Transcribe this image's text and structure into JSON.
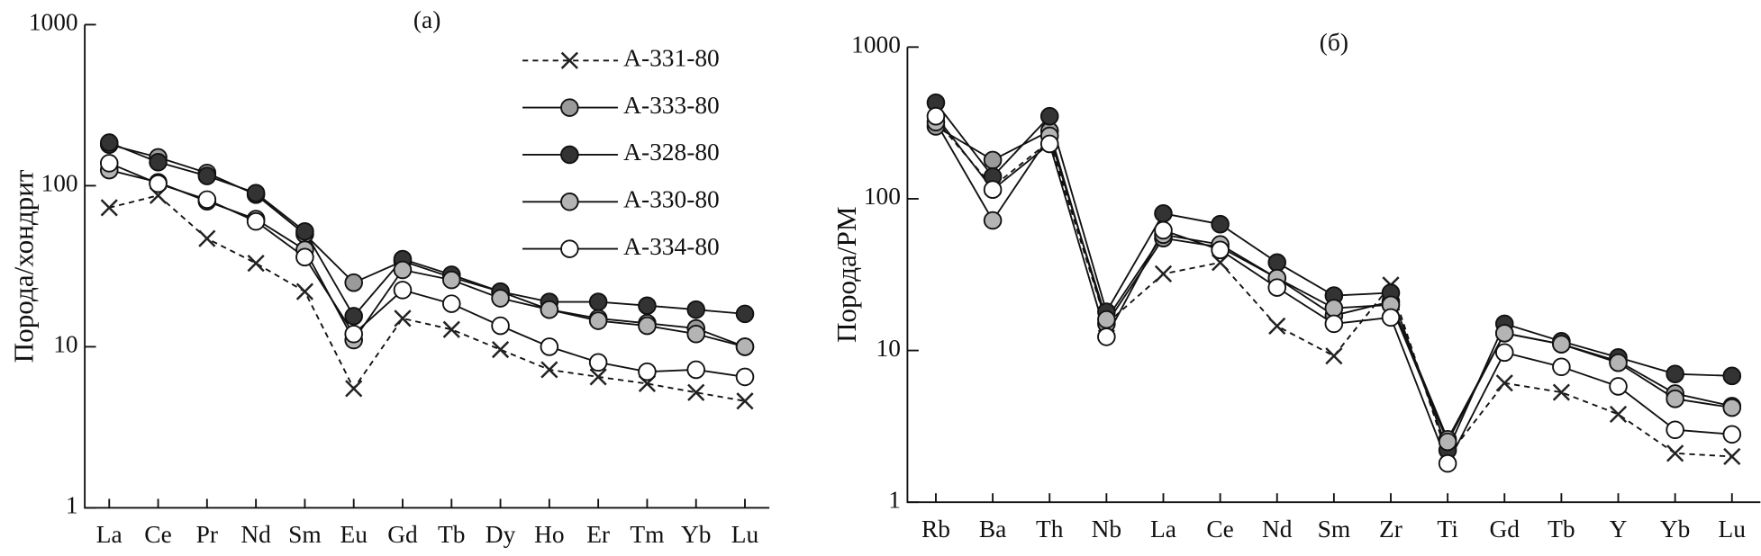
{
  "chart_data": [
    {
      "type": "line",
      "title": "(a)",
      "ylabel": "Порода/хондрит",
      "yscale": "log",
      "ylim": [
        1,
        1000
      ],
      "yticks": [
        1,
        10,
        100,
        1000
      ],
      "legend": "upper-right",
      "categories": [
        "La",
        "Ce",
        "Pr",
        "Nd",
        "Sm",
        "Eu",
        "Gd",
        "Tb",
        "Dy",
        "Ho",
        "Er",
        "Tm",
        "Yb",
        "Lu"
      ],
      "series": [
        {
          "name": "A-331-80",
          "marker": "x",
          "dashed": true,
          "color": "#222222",
          "values": [
            73,
            87,
            47,
            33,
            22,
            5.5,
            15,
            12.8,
            9.6,
            7.2,
            6.5,
            5.9,
            5.2,
            4.6
          ]
        },
        {
          "name": "A-333-80",
          "marker": "circle",
          "dashed": false,
          "color": "#9a9a9a",
          "values": [
            180,
            150,
            120,
            88,
            50,
            25,
            34,
            27,
            22,
            17,
            15,
            14,
            13,
            10
          ]
        },
        {
          "name": "A-328-80",
          "marker": "circle",
          "dashed": false,
          "color": "#333333",
          "values": [
            185,
            140,
            115,
            90,
            52,
            15.5,
            35,
            28,
            22,
            19,
            19,
            18,
            17,
            16
          ]
        },
        {
          "name": "A-330-80",
          "marker": "circle",
          "dashed": false,
          "color": "#b4b4b4",
          "values": [
            125,
            105,
            80,
            62,
            40,
            11,
            30,
            26,
            20,
            17,
            14.5,
            13.5,
            12,
            10
          ]
        },
        {
          "name": "A-334-80",
          "marker": "circle",
          "dashed": false,
          "color": "#ffffff",
          "values": [
            138,
            103,
            82,
            60,
            36,
            12,
            22.5,
            18.5,
            13.5,
            10,
            8,
            7,
            7.2,
            6.5
          ]
        }
      ]
    },
    {
      "type": "line",
      "title": "(б)",
      "ylabel": "Порода/PM",
      "yscale": "log",
      "ylim": [
        1,
        1000
      ],
      "yticks": [
        1,
        10,
        100,
        1000
      ],
      "categories": [
        "Rb",
        "Ba",
        "Th",
        "Nb",
        "La",
        "Ce",
        "Nd",
        "Sm",
        "Zr",
        "Ti",
        "Gd",
        "Tb",
        "Y",
        "Yb",
        "Lu"
      ],
      "series": [
        {
          "name": "A-331-80",
          "marker": "x",
          "dashed": true,
          "color": "#222222",
          "values": [
            330,
            120,
            240,
            15,
            32,
            38,
            14.5,
            9.2,
            27,
            2.0,
            6.1,
            5.3,
            3.8,
            2.1,
            2.0
          ]
        },
        {
          "name": "A-333-80",
          "marker": "circle",
          "dashed": false,
          "color": "#9a9a9a",
          "values": [
            300,
            180,
            280,
            15,
            55,
            48,
            30,
            17,
            21,
            2.6,
            13,
            11,
            8.5,
            5.2,
            4.3
          ]
        },
        {
          "name": "A-328-80",
          "marker": "circle",
          "dashed": false,
          "color": "#333333",
          "values": [
            430,
            140,
            350,
            18,
            80,
            68,
            38,
            23,
            24,
            2.2,
            15,
            11.5,
            9,
            7,
            6.8
          ]
        },
        {
          "name": "A-330-80",
          "marker": "circle",
          "dashed": false,
          "color": "#b4b4b4",
          "values": [
            320,
            72,
            260,
            16,
            58,
            50,
            30,
            19,
            20,
            2.5,
            13,
            11,
            8.3,
            4.8,
            4.2
          ]
        },
        {
          "name": "A-334-80",
          "marker": "circle",
          "dashed": false,
          "color": "#ffffff",
          "values": [
            350,
            115,
            230,
            12.3,
            62,
            46,
            26,
            15,
            16.5,
            1.8,
            9.7,
            7.8,
            5.8,
            3.0,
            2.8
          ]
        }
      ]
    }
  ]
}
